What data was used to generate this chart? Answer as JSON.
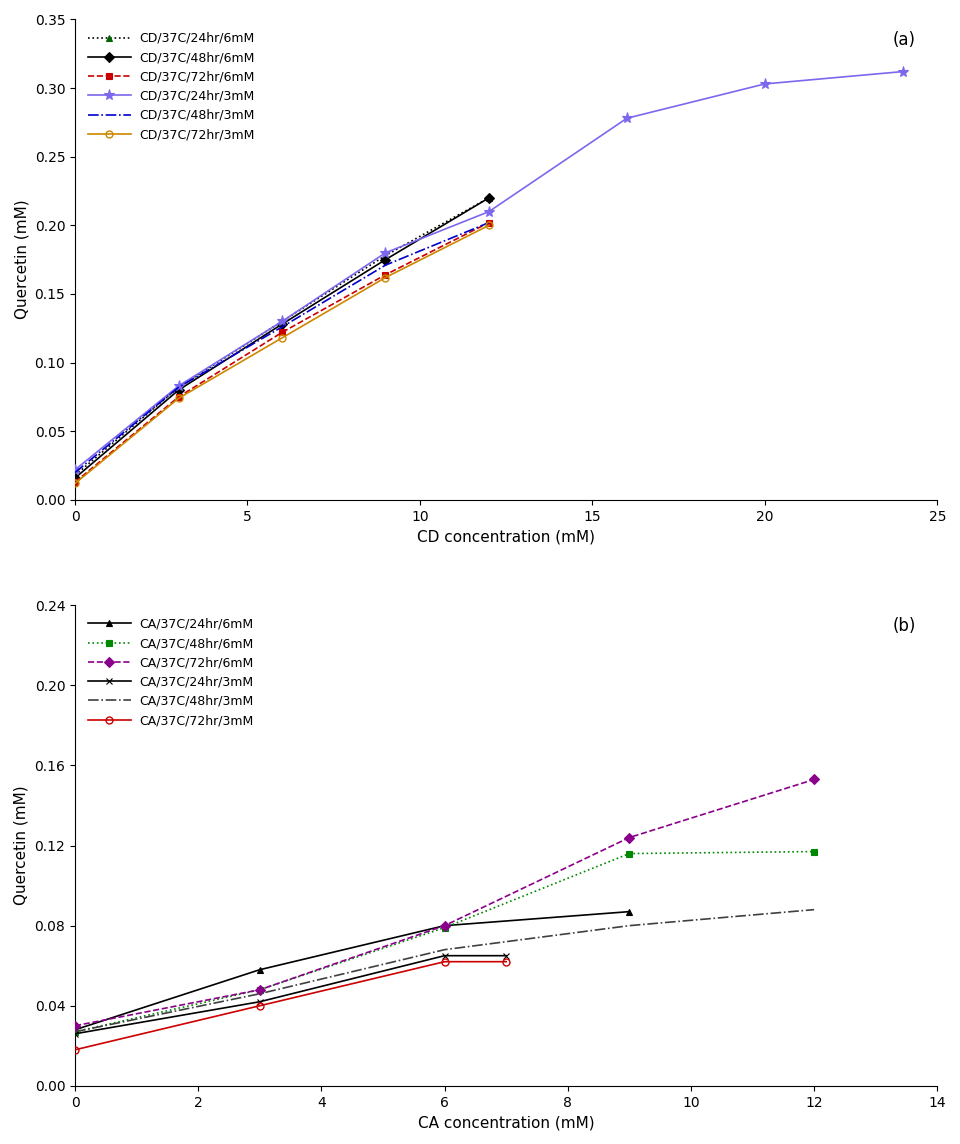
{
  "panel_a": {
    "title": "(a)",
    "xlabel": "CD concentration (mM)",
    "ylabel": "Quercetin (mM)",
    "xlim": [
      0,
      25
    ],
    "ylim": [
      0,
      0.35
    ],
    "xticks": [
      0,
      5,
      10,
      15,
      20,
      25
    ],
    "yticks": [
      0.0,
      0.05,
      0.1,
      0.15,
      0.2,
      0.25,
      0.3,
      0.35
    ],
    "series": [
      {
        "label": "CD/37C/24hr/6mM",
        "color": "#000000",
        "linestyle": "dotted",
        "marker": "^",
        "markerfacecolor": "#006400",
        "markeredgecolor": "#006400",
        "markersize": 5,
        "x": [
          0,
          3,
          6,
          9,
          12
        ],
        "y": [
          0.018,
          0.082,
          0.13,
          0.178,
          0.22
        ]
      },
      {
        "label": "CD/37C/48hr/6mM",
        "color": "#000000",
        "linestyle": "solid",
        "marker": "D",
        "markerfacecolor": "#000000",
        "markeredgecolor": "#000000",
        "markersize": 5,
        "x": [
          0,
          3,
          6,
          9,
          12
        ],
        "y": [
          0.016,
          0.08,
          0.128,
          0.175,
          0.22
        ]
      },
      {
        "label": "CD/37C/72hr/6mM",
        "color": "#cc0000",
        "linestyle": "dashed",
        "marker": "s",
        "markerfacecolor": "#cc0000",
        "markeredgecolor": "#cc0000",
        "markersize": 5,
        "x": [
          0,
          3,
          6,
          9,
          12
        ],
        "y": [
          0.013,
          0.075,
          0.122,
          0.164,
          0.202
        ]
      },
      {
        "label": "CD/37C/24hr/3mM",
        "color": "#7b68ee",
        "linestyle": "solid",
        "marker": "*",
        "markerfacecolor": "#7b68ee",
        "markeredgecolor": "#7b68ee",
        "markersize": 8,
        "x": [
          0,
          3,
          6,
          9,
          12,
          16,
          20,
          24
        ],
        "y": [
          0.022,
          0.083,
          0.13,
          0.18,
          0.21,
          0.278,
          0.303,
          0.312
        ]
      },
      {
        "label": "CD/37C/48hr/3mM",
        "color": "#0000cc",
        "linestyle": "dashdot",
        "marker": "None",
        "markerfacecolor": "#0000cc",
        "markeredgecolor": "#0000cc",
        "markersize": 5,
        "x": [
          0,
          3,
          6,
          9,
          12
        ],
        "y": [
          0.02,
          0.082,
          0.126,
          0.171,
          0.202
        ]
      },
      {
        "label": "CD/37C/72hr/3mM",
        "color": "#cc8800",
        "linestyle": "solid",
        "marker": "o",
        "markerfacecolor": "none",
        "markeredgecolor": "#cc8800",
        "markersize": 5,
        "x": [
          0,
          3,
          6,
          9,
          12
        ],
        "y": [
          0.012,
          0.074,
          0.118,
          0.162,
          0.2
        ]
      }
    ]
  },
  "panel_b": {
    "title": "(b)",
    "xlabel": "CA concentration (mM)",
    "ylabel": "Quercetin (mM)",
    "xlim": [
      0,
      14
    ],
    "ylim": [
      0,
      0.24
    ],
    "xticks": [
      0,
      2,
      4,
      6,
      8,
      10,
      12,
      14
    ],
    "yticks": [
      0.0,
      0.04,
      0.08,
      0.12,
      0.16,
      0.2,
      0.24
    ],
    "series": [
      {
        "label": "CA/37C/24hr/6mM",
        "color": "#000000",
        "linestyle": "solid",
        "marker": "^",
        "markerfacecolor": "#000000",
        "markeredgecolor": "#000000",
        "markersize": 5,
        "x": [
          0,
          3,
          6,
          9
        ],
        "y": [
          0.028,
          0.058,
          0.08,
          0.087
        ]
      },
      {
        "label": "CA/37C/48hr/6mM",
        "color": "#008800",
        "linestyle": "dotted",
        "marker": "s",
        "markerfacecolor": "#008800",
        "markeredgecolor": "#008800",
        "markersize": 5,
        "x": [
          0,
          3,
          6,
          9,
          12
        ],
        "y": [
          0.027,
          0.048,
          0.079,
          0.116,
          0.117
        ]
      },
      {
        "label": "CA/37C/72hr/6mM",
        "color": "#8b008b",
        "linestyle": "dashed",
        "marker": "D",
        "markerfacecolor": "#8b008b",
        "markeredgecolor": "#8b008b",
        "markersize": 5,
        "x": [
          0,
          3,
          6,
          9,
          12
        ],
        "y": [
          0.03,
          0.048,
          0.08,
          0.124,
          0.153
        ]
      },
      {
        "label": "CA/37C/24hr/3mM",
        "color": "#000000",
        "linestyle": "solid",
        "marker": "x",
        "markerfacecolor": "#000000",
        "markeredgecolor": "#000000",
        "markersize": 5,
        "x": [
          0,
          3,
          6,
          7
        ],
        "y": [
          0.026,
          0.042,
          0.065,
          0.065
        ]
      },
      {
        "label": "CA/37C/48hr/3mM",
        "color": "#404040",
        "linestyle": "dashdot",
        "marker": "None",
        "markerfacecolor": "#404040",
        "markeredgecolor": "#404040",
        "markersize": 5,
        "x": [
          0,
          3,
          6,
          9,
          12
        ],
        "y": [
          0.027,
          0.046,
          0.068,
          0.08,
          0.088
        ]
      },
      {
        "label": "CA/37C/72hr/3mM",
        "color": "#cc0000",
        "linestyle": "solid",
        "marker": "o",
        "markerfacecolor": "none",
        "markeredgecolor": "#cc0000",
        "markersize": 5,
        "x": [
          0,
          3,
          6,
          7
        ],
        "y": [
          0.018,
          0.04,
          0.062,
          0.062
        ]
      }
    ]
  }
}
